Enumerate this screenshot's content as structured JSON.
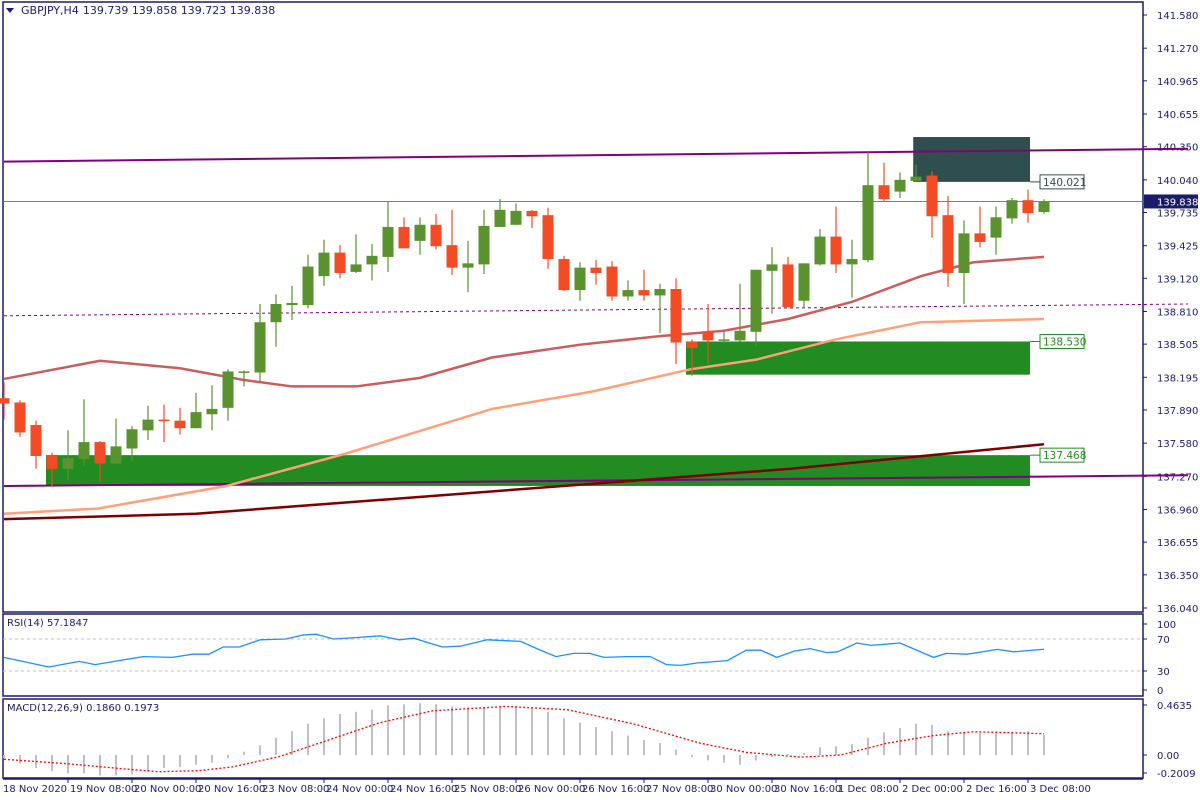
{
  "header": {
    "symbol": "GBPJPY,H4",
    "ohlc": "139.739 139.858 139.723 139.838"
  },
  "colors": {
    "bull": "#5a922f",
    "bear": "#f24b25",
    "axis": "#1b1b6b",
    "ma_fast": "#cd5c5c",
    "ma_mid": "#ffa07a",
    "ma_slow": "#800000",
    "channel": "#800080",
    "zone_green": "#228b22",
    "zone_dark": "#2f4f4f",
    "rsi": "#1e90ff",
    "macd_hist": "#c0c0c0",
    "macd_signal": "#ff0000"
  },
  "price_axis": {
    "min": 136.04,
    "max": 141.58,
    "ticks": [
      "141.580",
      "141.270",
      "140.965",
      "140.655",
      "140.350",
      "140.040",
      "139.735",
      "139.425",
      "139.120",
      "138.810",
      "138.505",
      "138.195",
      "137.890",
      "137.580",
      "137.270",
      "136.960",
      "136.655",
      "136.350",
      "136.040"
    ]
  },
  "current_price": "139.838",
  "time_axis": [
    "18 Nov 2020",
    "19 Nov 08:00",
    "20 Nov 00:00",
    "20 Nov 16:00",
    "23 Nov 08:00",
    "24 Nov 00:00",
    "24 Nov 16:00",
    "25 Nov 08:00",
    "26 Nov 00:00",
    "26 Nov 16:00",
    "27 Nov 08:00",
    "30 Nov 00:00",
    "30 Nov 16:00",
    "1 Dec 08:00",
    "2 Dec 00:00",
    "2 Dec 16:00",
    "3 Dec 08:00"
  ],
  "chart_data": {
    "type": "candlestick",
    "title": "GBPJPY,H4",
    "candles_ohlc": [
      [
        138.0,
        138.15,
        137.8,
        137.95
      ],
      [
        137.96,
        137.98,
        137.64,
        137.68
      ],
      [
        137.75,
        137.79,
        137.34,
        137.46
      ],
      [
        137.47,
        137.49,
        137.18,
        137.34
      ],
      [
        137.34,
        137.7,
        137.23,
        137.44
      ],
      [
        137.43,
        137.99,
        137.37,
        137.59
      ],
      [
        137.59,
        137.6,
        137.22,
        137.39
      ],
      [
        137.39,
        137.81,
        137.38,
        137.55
      ],
      [
        137.53,
        137.74,
        137.41,
        137.71
      ],
      [
        137.7,
        137.93,
        137.61,
        137.8
      ],
      [
        137.8,
        137.94,
        137.59,
        137.79
      ],
      [
        137.79,
        137.91,
        137.66,
        137.72
      ],
      [
        137.72,
        138.05,
        137.72,
        137.87
      ],
      [
        137.85,
        138.12,
        137.7,
        137.9
      ],
      [
        137.91,
        138.27,
        137.79,
        138.25
      ],
      [
        138.24,
        138.26,
        138.11,
        138.25
      ],
      [
        138.24,
        138.88,
        138.15,
        138.71
      ],
      [
        138.71,
        138.97,
        138.48,
        138.88
      ],
      [
        138.87,
        139.05,
        138.73,
        138.89
      ],
      [
        138.87,
        139.34,
        138.84,
        139.23
      ],
      [
        139.14,
        139.48,
        139.05,
        139.36
      ],
      [
        139.36,
        139.43,
        139.12,
        139.17
      ],
      [
        139.18,
        139.53,
        139.17,
        139.25
      ],
      [
        139.25,
        139.44,
        139.1,
        139.33
      ],
      [
        139.32,
        139.84,
        139.18,
        139.6
      ],
      [
        139.6,
        139.69,
        139.4,
        139.4
      ],
      [
        139.47,
        139.69,
        139.34,
        139.62
      ],
      [
        139.62,
        139.72,
        139.39,
        139.42
      ],
      [
        139.43,
        139.76,
        139.15,
        139.22
      ],
      [
        139.22,
        139.47,
        138.99,
        139.26
      ],
      [
        139.25,
        139.76,
        139.16,
        139.61
      ],
      [
        139.6,
        139.86,
        139.6,
        139.76
      ],
      [
        139.62,
        139.82,
        139.62,
        139.75
      ],
      [
        139.75,
        139.76,
        139.59,
        139.7
      ],
      [
        139.71,
        139.78,
        139.21,
        139.3
      ],
      [
        139.3,
        139.33,
        139.0,
        139.01
      ],
      [
        139.01,
        139.27,
        138.91,
        139.22
      ],
      [
        139.22,
        139.29,
        139.06,
        139.17
      ],
      [
        139.23,
        139.28,
        138.91,
        138.95
      ],
      [
        138.95,
        139.1,
        138.91,
        139.01
      ],
      [
        139.01,
        139.2,
        138.91,
        138.96
      ],
      [
        138.96,
        139.07,
        138.61,
        139.02
      ],
      [
        139.02,
        139.12,
        138.32,
        138.52
      ],
      [
        138.53,
        138.55,
        138.21,
        138.47
      ],
      [
        138.62,
        138.88,
        138.32,
        138.54
      ],
      [
        138.55,
        138.63,
        138.51,
        138.55
      ],
      [
        138.54,
        139.07,
        138.53,
        138.63
      ],
      [
        138.62,
        139.2,
        138.48,
        139.2
      ],
      [
        139.19,
        139.41,
        138.79,
        139.25
      ],
      [
        139.25,
        139.32,
        138.85,
        138.85
      ],
      [
        138.91,
        139.26,
        138.84,
        139.26
      ],
      [
        139.25,
        139.58,
        139.24,
        139.51
      ],
      [
        139.51,
        139.79,
        139.17,
        139.25
      ],
      [
        139.25,
        139.48,
        138.94,
        139.3
      ],
      [
        139.29,
        140.3,
        139.27,
        139.99
      ],
      [
        139.99,
        140.2,
        139.84,
        139.86
      ],
      [
        139.93,
        140.11,
        139.87,
        140.04
      ],
      [
        140.03,
        140.18,
        140.02,
        140.07
      ],
      [
        140.08,
        140.12,
        139.5,
        139.7
      ],
      [
        139.71,
        139.89,
        139.04,
        139.17
      ],
      [
        139.17,
        139.66,
        138.88,
        139.54
      ],
      [
        139.54,
        139.79,
        139.41,
        139.46
      ],
      [
        139.5,
        139.79,
        139.34,
        139.69
      ],
      [
        139.68,
        139.87,
        139.63,
        139.85
      ],
      [
        139.85,
        139.95,
        139.64,
        139.73
      ],
      [
        139.739,
        139.858,
        139.723,
        139.838
      ]
    ],
    "moving_averages": [
      {
        "name": "ma-fast",
        "points": [
          [
            0,
            138.18
          ],
          [
            6,
            138.35
          ],
          [
            11,
            138.28
          ],
          [
            15,
            138.17
          ],
          [
            18,
            138.11
          ],
          [
            22,
            138.11
          ],
          [
            26,
            138.19
          ],
          [
            30.5,
            138.38
          ],
          [
            36,
            138.5
          ],
          [
            41,
            138.58
          ],
          [
            45,
            138.63
          ],
          [
            49,
            138.74
          ],
          [
            53,
            138.9
          ],
          [
            57.3,
            139.14
          ],
          [
            60.6,
            139.27
          ],
          [
            65,
            139.32
          ]
        ]
      },
      {
        "name": "ma-mid",
        "points": [
          [
            0,
            136.92
          ],
          [
            5.9,
            136.97
          ],
          [
            13.9,
            137.18
          ],
          [
            21.3,
            137.48
          ],
          [
            30.5,
            137.9
          ],
          [
            36.7,
            138.06
          ],
          [
            42.9,
            138.27
          ],
          [
            47,
            138.36
          ],
          [
            52,
            138.55
          ],
          [
            57.3,
            138.71
          ],
          [
            65,
            138.74
          ]
        ]
      },
      {
        "name": "ma-slow",
        "points": [
          [
            0,
            136.87
          ],
          [
            12,
            136.92
          ],
          [
            24.4,
            137.06
          ],
          [
            36.7,
            137.2
          ],
          [
            49.1,
            137.34
          ],
          [
            65,
            137.57
          ]
        ]
      }
    ],
    "channel_lines": [
      {
        "name": "channel-top",
        "style": "solid",
        "from": [
          0,
          140.21
        ],
        "to": [
          74,
          140.33
        ]
      },
      {
        "name": "channel-mid",
        "style": "dashed",
        "from": [
          0,
          138.77
        ],
        "to": [
          74,
          138.88
        ]
      },
      {
        "name": "channel-bottom",
        "style": "solid",
        "from": [
          0,
          137.18
        ],
        "to": [
          74,
          137.28
        ]
      }
    ],
    "zones": [
      {
        "name": "resistance-zone",
        "color": "zone_dark",
        "from_index": 57.2,
        "to_index": 65,
        "top": 140.44,
        "bottom": 140.021,
        "label": "140.021",
        "label_at": 140.021
      },
      {
        "name": "support-zone-upper",
        "color": "zone_green",
        "from_index": 43,
        "to_index": 65,
        "top": 138.53,
        "bottom": 138.22,
        "label": "138.530",
        "label_at": 138.53
      },
      {
        "name": "support-zone-lower",
        "color": "zone_green",
        "from_index": 3,
        "to_index": 65,
        "top": 137.468,
        "bottom": 137.18,
        "label": "137.468",
        "label_at": 137.468
      }
    ]
  },
  "rsi": {
    "label": "RSI(14) 57.1847",
    "levels": [
      "100",
      "70",
      "30",
      "0"
    ],
    "points": [
      [
        0,
        47
      ],
      [
        2.8,
        35
      ],
      [
        4.7,
        42
      ],
      [
        5.7,
        38
      ],
      [
        8.7,
        48
      ],
      [
        10.5,
        47
      ],
      [
        11.8,
        51
      ],
      [
        12.8,
        51
      ],
      [
        13.7,
        60
      ],
      [
        14.7,
        60
      ],
      [
        16,
        69
      ],
      [
        17.6,
        70
      ],
      [
        18.7,
        75
      ],
      [
        19.5,
        76
      ],
      [
        20.6,
        70
      ],
      [
        22.2,
        72
      ],
      [
        23.5,
        74
      ],
      [
        24.7,
        69
      ],
      [
        25.6,
        71
      ],
      [
        27.4,
        60
      ],
      [
        28.5,
        61
      ],
      [
        30.2,
        69
      ],
      [
        32.3,
        67
      ],
      [
        33.3,
        58
      ],
      [
        34.5,
        48
      ],
      [
        35.6,
        52
      ],
      [
        36.6,
        52
      ],
      [
        37.5,
        47
      ],
      [
        38.9,
        48
      ],
      [
        40.4,
        48
      ],
      [
        41.4,
        38
      ],
      [
        42.3,
        37
      ],
      [
        43.3,
        40
      ],
      [
        45.2,
        43
      ],
      [
        46.4,
        56
      ],
      [
        47.3,
        56
      ],
      [
        48.3,
        47
      ],
      [
        49.4,
        55
      ],
      [
        50.4,
        58
      ],
      [
        51.4,
        53
      ],
      [
        52.1,
        54
      ],
      [
        53.3,
        65
      ],
      [
        54.2,
        62
      ],
      [
        56,
        65
      ],
      [
        58.1,
        47
      ],
      [
        58.9,
        52
      ],
      [
        60.2,
        51
      ],
      [
        62.1,
        57
      ],
      [
        63.1,
        54
      ],
      [
        65,
        57.18
      ]
    ]
  },
  "macd": {
    "label": "MACD(12,26,9) 0.1860 0.1973",
    "axis": [
      "0.4635",
      "0.00",
      "-0.2009"
    ],
    "histogram": [
      -0.03,
      -0.08,
      -0.12,
      -0.15,
      -0.17,
      -0.17,
      -0.19,
      -0.19,
      -0.18,
      -0.15,
      -0.12,
      -0.11,
      -0.09,
      -0.07,
      -0.03,
      0.03,
      0.09,
      0.16,
      0.22,
      0.29,
      0.34,
      0.38,
      0.4,
      0.42,
      0.46,
      0.47,
      0.48,
      0.47,
      0.45,
      0.44,
      0.44,
      0.44,
      0.45,
      0.44,
      0.4,
      0.34,
      0.3,
      0.26,
      0.22,
      0.18,
      0.14,
      0.11,
      0.05,
      -0.02,
      -0.05,
      -0.07,
      -0.09,
      -0.05,
      -0.02,
      0.01,
      0.02,
      0.07,
      0.08,
      0.1,
      0.16,
      0.21,
      0.25,
      0.29,
      0.28,
      0.22,
      0.21,
      0.2,
      0.2,
      0.21,
      0.22,
      0.186
    ],
    "signal": [
      [
        0,
        -0.04
      ],
      [
        3.9,
        -0.08
      ],
      [
        7.6,
        -0.13
      ],
      [
        9.7,
        -0.155
      ],
      [
        12.2,
        -0.145
      ],
      [
        14.3,
        -0.11
      ],
      [
        17.2,
        -0.015
      ],
      [
        20.6,
        0.155
      ],
      [
        23.5,
        0.3
      ],
      [
        26.8,
        0.41
      ],
      [
        31.4,
        0.45
      ],
      [
        35.2,
        0.42
      ],
      [
        39.3,
        0.29
      ],
      [
        43.5,
        0.11
      ],
      [
        46.4,
        0.025
      ],
      [
        49.8,
        -0.02
      ],
      [
        52.3,
        0.0
      ],
      [
        55.2,
        0.11
      ],
      [
        58.1,
        0.18
      ],
      [
        60.6,
        0.216
      ],
      [
        65,
        0.1973
      ]
    ]
  }
}
